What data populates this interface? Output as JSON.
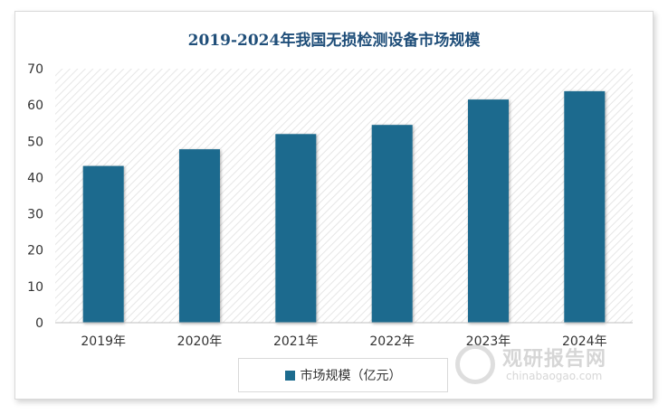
{
  "chart_data": {
    "type": "bar",
    "title": "2019-2024年我国无损检测设备市场规模",
    "categories": [
      "2019年",
      "2020年",
      "2021年",
      "2022年",
      "2023年",
      "2024年"
    ],
    "series": [
      {
        "name": "市场规模（亿元）",
        "values": [
          43.2,
          47.8,
          52.0,
          54.5,
          61.5,
          63.8
        ]
      }
    ],
    "ylim": [
      0,
      70
    ],
    "yticks": [
      0,
      10,
      20,
      30,
      40,
      50,
      60,
      70
    ],
    "grid": false,
    "plot_background": "diagonal-hatch",
    "legend_position": "bottom",
    "bar_color": "#1c6b8e"
  },
  "watermark": {
    "name_cn": "观研报告网",
    "site": "chinabaogao.com"
  }
}
